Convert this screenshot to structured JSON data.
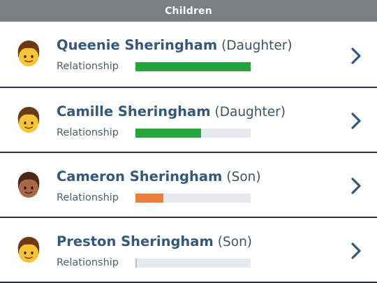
{
  "header": {
    "title": "Children"
  },
  "children": [
    {
      "name": "Queenie Sheringham",
      "relation": "(Daughter)",
      "relationship_label": "Relationship",
      "relationship_level": 1.0,
      "bar_color": "#27a23c",
      "skin": "#f7c438",
      "hair": "#6b3a14",
      "icon": "child-emoji-icon"
    },
    {
      "name": "Camille Sheringham",
      "relation": "(Daughter)",
      "relationship_label": "Relationship",
      "relationship_level": 0.57,
      "bar_color": "#27a23c",
      "skin": "#f7c438",
      "hair": "#6b3a14",
      "icon": "child-emoji-icon"
    },
    {
      "name": "Cameron Sheringham",
      "relation": "(Son)",
      "relationship_label": "Relationship",
      "relationship_level": 0.24,
      "bar_color": "#ee7d3b",
      "skin": "#a8694a",
      "hair": "#4a2a14",
      "icon": "child-emoji-icon"
    },
    {
      "name": "Preston Sheringham",
      "relation": "(Son)",
      "relationship_label": "Relationship",
      "relationship_level": 0.0,
      "bar_color": "#b8bdc4",
      "skin": "#f7c438",
      "hair": "#6b3a14",
      "icon": "child-emoji-icon"
    }
  ]
}
